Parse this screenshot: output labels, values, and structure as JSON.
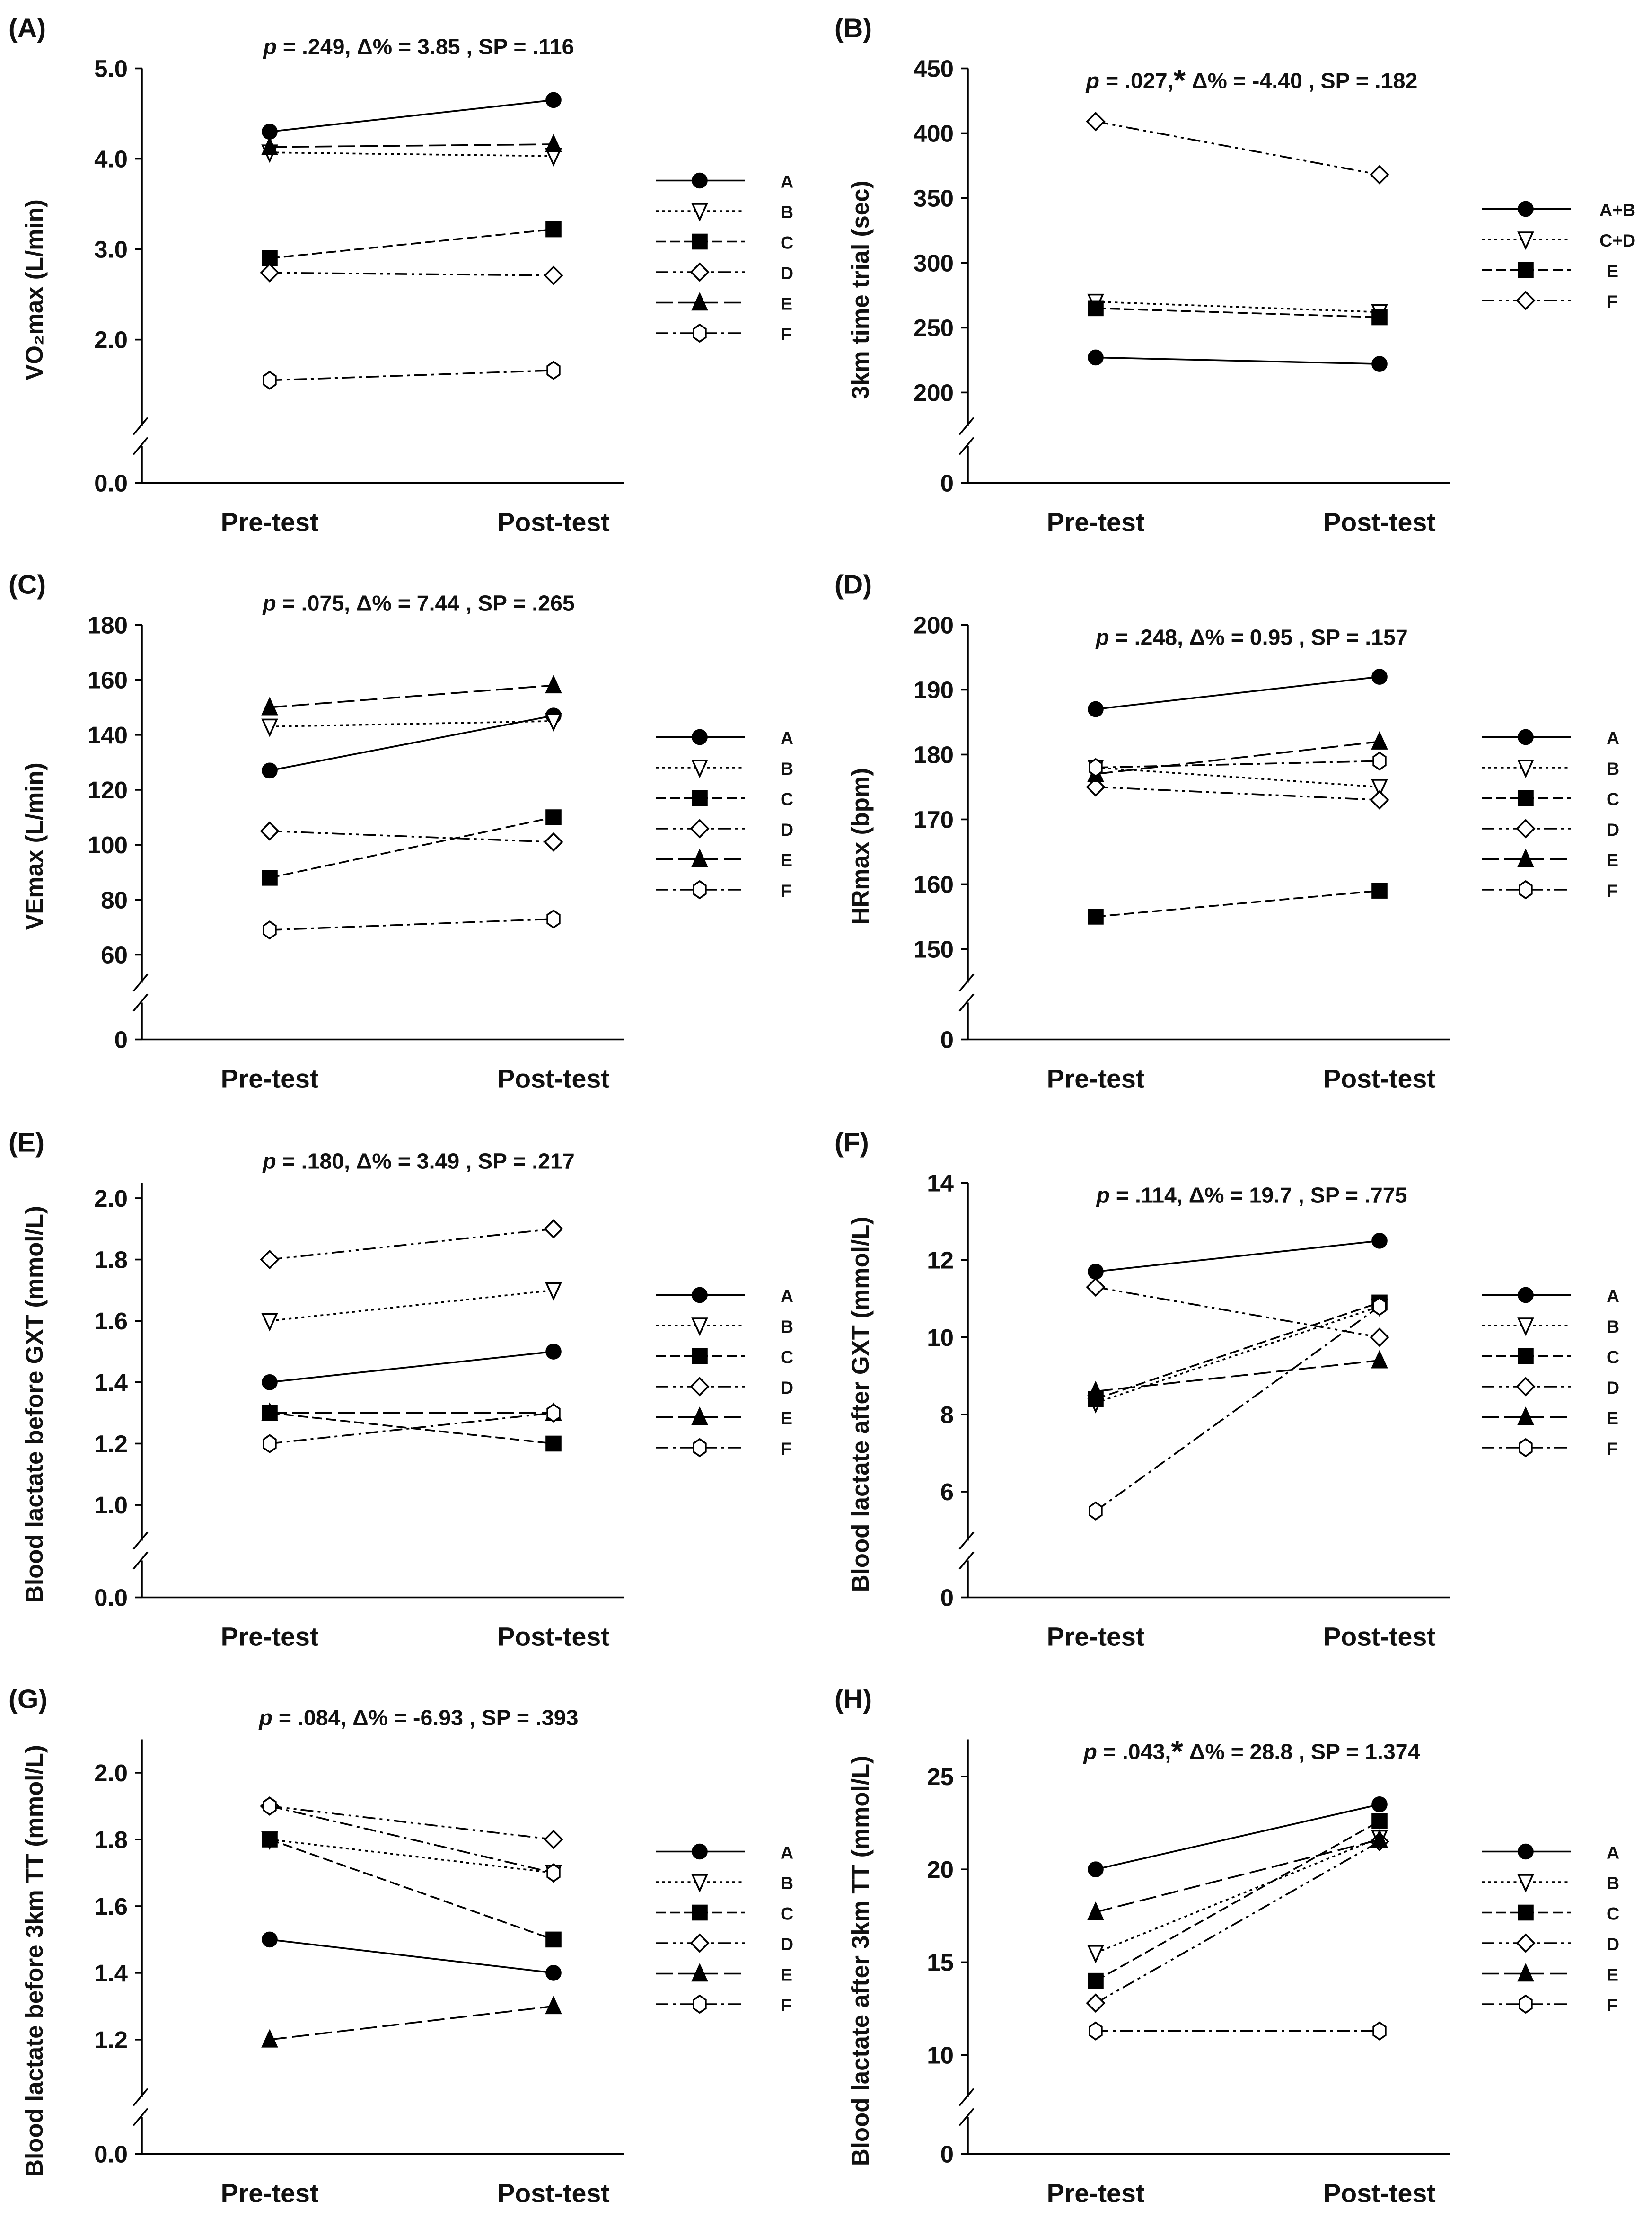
{
  "chart_data": [
    {
      "panel": "(A)",
      "type": "line",
      "ylabel": "VO₂max (L/min)",
      "stat": {
        "p": ".249",
        "sig": false,
        "rest": " Δ% = 3.85 , SP = .116"
      },
      "categories": [
        "Pre-test",
        "Post-test"
      ],
      "yticks": [
        0.0,
        2.0,
        3.0,
        4.0,
        5.0
      ],
      "ytick_labels": [
        "0.0",
        "2.0",
        "3.0",
        "4.0",
        "5.0"
      ],
      "ylim_upper": [
        1.2,
        5.0
      ],
      "axis_break": true,
      "series": [
        {
          "name": "A",
          "values": [
            4.3,
            4.65
          ]
        },
        {
          "name": "B",
          "values": [
            4.07,
            4.03
          ]
        },
        {
          "name": "C",
          "values": [
            2.9,
            3.22
          ]
        },
        {
          "name": "D",
          "values": [
            2.74,
            2.71
          ]
        },
        {
          "name": "E",
          "values": [
            4.13,
            4.16
          ]
        },
        {
          "name": "F",
          "values": [
            1.55,
            1.66
          ]
        }
      ]
    },
    {
      "panel": "(B)",
      "type": "line",
      "ylabel": "3km time trial (sec)",
      "stat": {
        "p": ".027",
        "sig": true,
        "rest": " Δ% = -4.40 , SP = .182"
      },
      "categories": [
        "Pre-test",
        "Post-test"
      ],
      "yticks": [
        0,
        200,
        250,
        300,
        350,
        400,
        450
      ],
      "ytick_labels": [
        "0",
        "200",
        "250",
        "300",
        "350",
        "400",
        "450"
      ],
      "ylim_upper": [
        185,
        450
      ],
      "axis_break": true,
      "series": [
        {
          "name": "A+B",
          "values": [
            227,
            222
          ]
        },
        {
          "name": "C+D",
          "values": [
            270,
            262
          ]
        },
        {
          "name": "E",
          "values": [
            265,
            258
          ]
        },
        {
          "name": "F",
          "values": [
            409,
            368
          ]
        }
      ]
    },
    {
      "panel": "(C)",
      "type": "line",
      "ylabel": "VEmax (L/min)",
      "stat": {
        "p": ".075",
        "sig": false,
        "rest": " Δ% = 7.44 , SP = .265"
      },
      "categories": [
        "Pre-test",
        "Post-test"
      ],
      "yticks": [
        0,
        60,
        80,
        100,
        120,
        140,
        160,
        180
      ],
      "ytick_labels": [
        "0",
        "60",
        "80",
        "100",
        "120",
        "140",
        "160",
        "180"
      ],
      "ylim_upper": [
        55,
        180
      ],
      "axis_break": true,
      "series": [
        {
          "name": "A",
          "values": [
            127,
            147
          ]
        },
        {
          "name": "B",
          "values": [
            143,
            145
          ]
        },
        {
          "name": "C",
          "values": [
            88,
            110
          ]
        },
        {
          "name": "D",
          "values": [
            105,
            101
          ]
        },
        {
          "name": "E",
          "values": [
            150,
            158
          ]
        },
        {
          "name": "F",
          "values": [
            69,
            73
          ]
        }
      ]
    },
    {
      "panel": "(D)",
      "type": "line",
      "ylabel": "HRmax (bpm)",
      "stat": {
        "p": ".248",
        "sig": false,
        "rest": " Δ% = 0.95 , SP = .157"
      },
      "categories": [
        "Pre-test",
        "Post-test"
      ],
      "yticks": [
        0,
        150,
        160,
        170,
        180,
        190,
        200
      ],
      "ytick_labels": [
        "0",
        "150",
        "160",
        "170",
        "180",
        "190",
        "200"
      ],
      "ylim_upper": [
        147,
        200
      ],
      "axis_break": true,
      "series": [
        {
          "name": "A",
          "values": [
            187,
            192
          ]
        },
        {
          "name": "B",
          "values": [
            178,
            175
          ]
        },
        {
          "name": "C",
          "values": [
            155,
            159
          ]
        },
        {
          "name": "D",
          "values": [
            175,
            173
          ]
        },
        {
          "name": "E",
          "values": [
            177,
            182
          ]
        },
        {
          "name": "F",
          "values": [
            178,
            179
          ]
        }
      ]
    },
    {
      "panel": "(E)",
      "type": "line",
      "ylabel": "Blood lactate before GXT (mmol/L)",
      "stat": {
        "p": ".180",
        "sig": false,
        "rest": " Δ% = 3.49 , SP = .217"
      },
      "categories": [
        "Pre-test",
        "Post-test"
      ],
      "yticks": [
        0.0,
        1.0,
        1.2,
        1.4,
        1.6,
        1.8,
        2.0
      ],
      "ytick_labels": [
        "0.0",
        "1.0",
        "1.2",
        "1.4",
        "1.6",
        "1.8",
        "2.0"
      ],
      "ylim_upper": [
        0.93,
        2.05
      ],
      "axis_break": true,
      "series": [
        {
          "name": "A",
          "values": [
            1.4,
            1.5
          ]
        },
        {
          "name": "B",
          "values": [
            1.6,
            1.7
          ]
        },
        {
          "name": "C",
          "values": [
            1.3,
            1.2
          ]
        },
        {
          "name": "D",
          "values": [
            1.8,
            1.9
          ]
        },
        {
          "name": "E",
          "values": [
            1.3,
            1.3
          ]
        },
        {
          "name": "F",
          "values": [
            1.2,
            1.3
          ]
        }
      ]
    },
    {
      "panel": "(F)",
      "type": "line",
      "ylabel": "Blood lactate after GXT (mmol/L)",
      "stat": {
        "p": ".114",
        "sig": false,
        "rest": " Δ% = 19.7 , SP = .775"
      },
      "categories": [
        "Pre-test",
        "Post-test"
      ],
      "yticks": [
        0,
        6,
        8,
        10,
        12,
        14
      ],
      "ytick_labels": [
        "0",
        "6",
        "8",
        "10",
        "12",
        "14"
      ],
      "ylim_upper": [
        5.1,
        14
      ],
      "axis_break": true,
      "series": [
        {
          "name": "A",
          "values": [
            11.7,
            12.5
          ]
        },
        {
          "name": "B",
          "values": [
            8.3,
            10.8
          ]
        },
        {
          "name": "C",
          "values": [
            8.4,
            10.9
          ]
        },
        {
          "name": "D",
          "values": [
            11.3,
            10.0
          ]
        },
        {
          "name": "E",
          "values": [
            8.6,
            9.4
          ]
        },
        {
          "name": "F",
          "values": [
            5.5,
            10.8
          ]
        }
      ]
    },
    {
      "panel": "(G)",
      "type": "line",
      "ylabel": "Blood lactate before 3km TT (mmol/L)",
      "stat": {
        "p": ".084",
        "sig": false,
        "rest": " Δ% = -6.93 , SP = .393"
      },
      "categories": [
        "Pre-test",
        "Post-test"
      ],
      "yticks": [
        0.0,
        1.2,
        1.4,
        1.6,
        1.8,
        2.0
      ],
      "ytick_labels": [
        "0.0",
        "1.2",
        "1.4",
        "1.6",
        "1.8",
        "2.0"
      ],
      "ylim_upper": [
        1.07,
        2.1
      ],
      "axis_break": true,
      "series": [
        {
          "name": "A",
          "values": [
            1.5,
            1.4
          ]
        },
        {
          "name": "B",
          "values": [
            1.8,
            1.7
          ]
        },
        {
          "name": "C",
          "values": [
            1.8,
            1.5
          ]
        },
        {
          "name": "D",
          "values": [
            1.9,
            1.8
          ]
        },
        {
          "name": "E",
          "values": [
            1.2,
            1.3
          ]
        },
        {
          "name": "F",
          "values": [
            1.9,
            1.7
          ]
        }
      ]
    },
    {
      "panel": "(H)",
      "type": "line",
      "ylabel": "Blood lactate after 3km TT (mmol/L)",
      "stat": {
        "p": ".043",
        "sig": true,
        "rest": " Δ% = 28.8 , SP = 1.374"
      },
      "categories": [
        "Pre-test",
        "Post-test"
      ],
      "yticks": [
        0,
        10,
        15,
        20,
        25
      ],
      "ytick_labels": [
        "0",
        "10",
        "15",
        "20",
        "25"
      ],
      "ylim_upper": [
        8.5,
        27
      ],
      "axis_break": true,
      "series": [
        {
          "name": "A",
          "values": [
            20,
            23.5
          ]
        },
        {
          "name": "B",
          "values": [
            15.5,
            21.7
          ]
        },
        {
          "name": "C",
          "values": [
            14,
            22.6
          ]
        },
        {
          "name": "D",
          "values": [
            12.8,
            21.5
          ]
        },
        {
          "name": "E",
          "values": [
            17.7,
            21.6
          ]
        },
        {
          "name": "F",
          "values": [
            11.3,
            11.3
          ]
        }
      ]
    }
  ]
}
